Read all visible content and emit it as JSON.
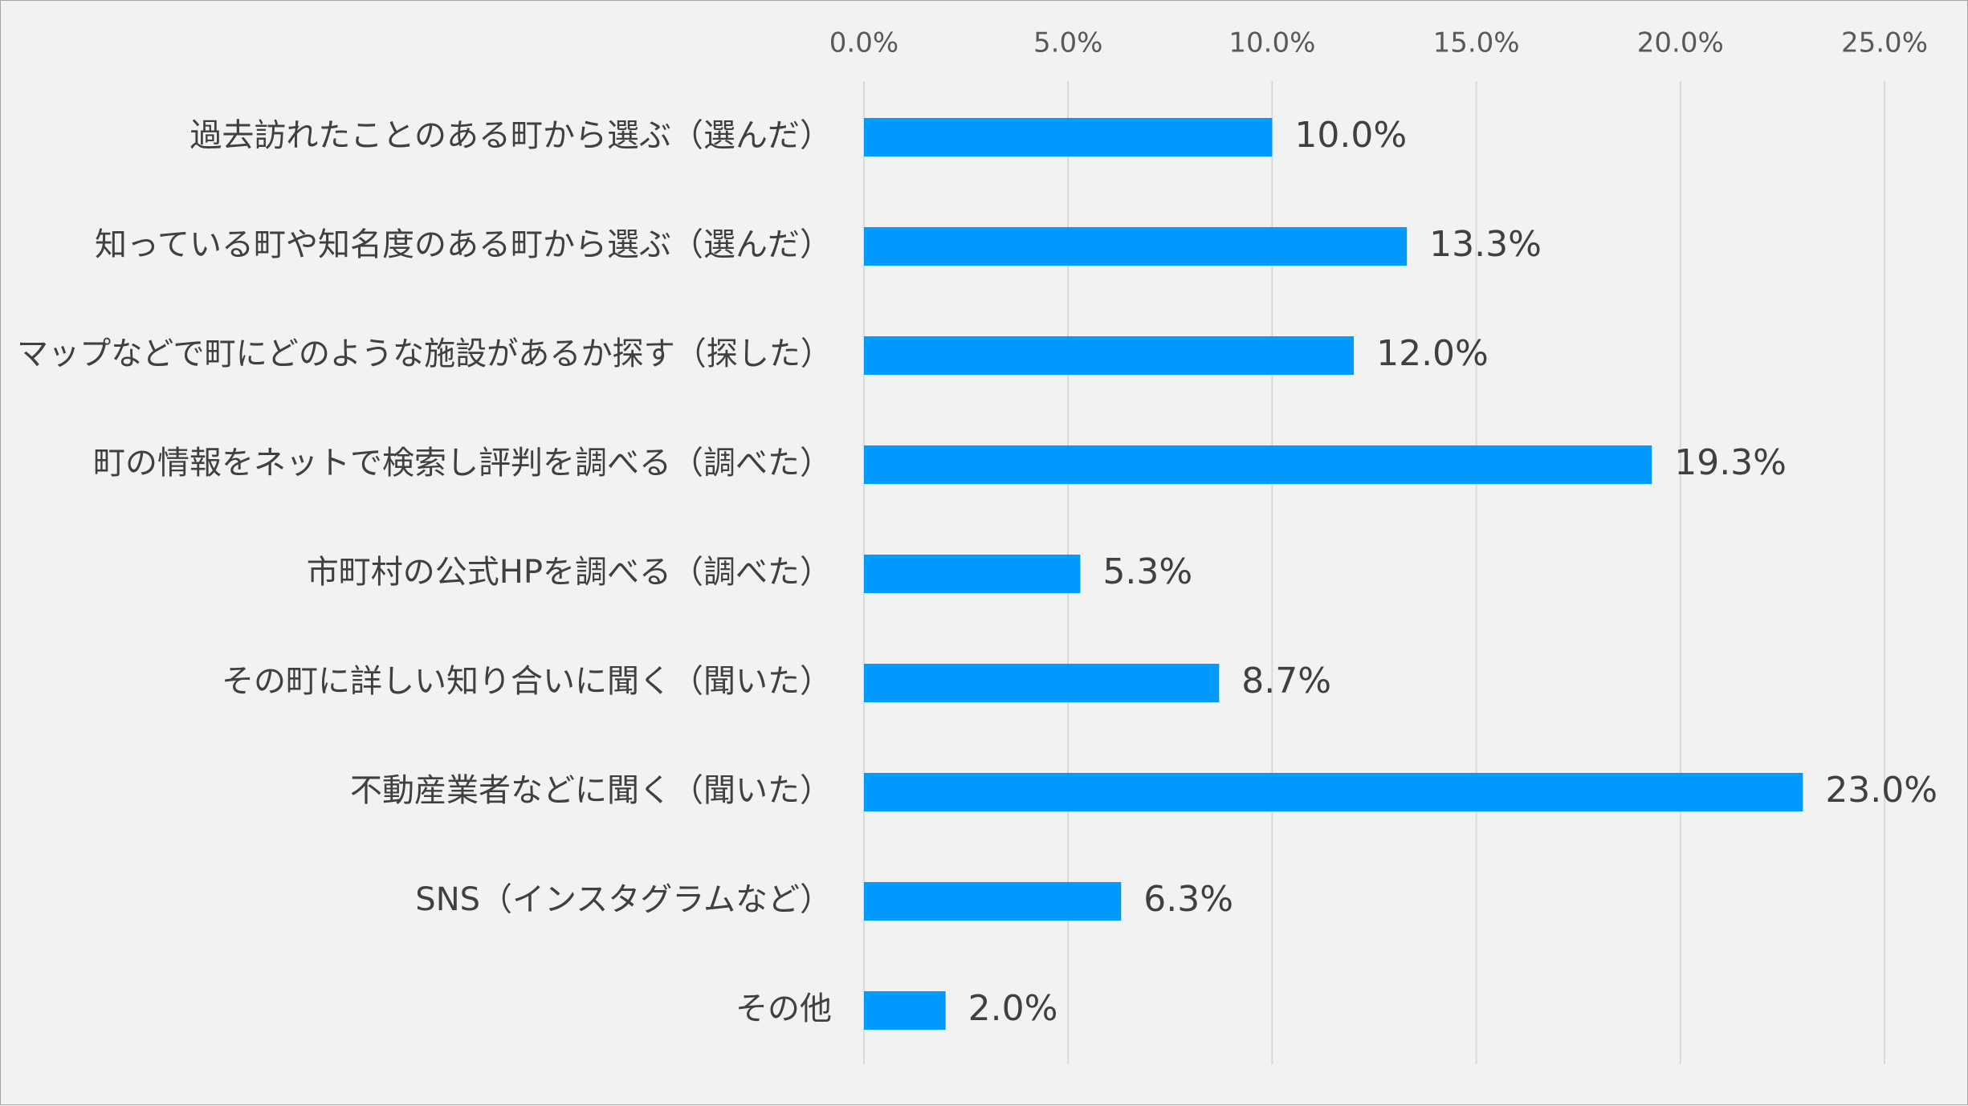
{
  "chart_data": {
    "type": "bar",
    "orientation": "horizontal",
    "title": "",
    "xlabel": "",
    "ylabel": "",
    "categories": [
      "過去訪れたことのある町から選ぶ（選んだ）",
      "知っている町や知名度のある町から選ぶ（選んだ）",
      "マップなどで町にどのような施設があるか探す（探した）",
      "町の情報をネットで検索し評判を調べる（調べた）",
      "市町村の公式HPを調べる（調べた）",
      "その町に詳しい知り合いに聞く（聞いた）",
      "不動産業者などに聞く（聞いた）",
      "SNS（インスタグラムなど）",
      "その他"
    ],
    "values": [
      10.0,
      13.3,
      12.0,
      19.3,
      5.3,
      8.7,
      23.0,
      6.3,
      2.0
    ],
    "value_labels": [
      "10.0%",
      "13.3%",
      "12.0%",
      "19.3%",
      "5.3%",
      "8.7%",
      "23.0%",
      "6.3%",
      "2.0%"
    ],
    "xlim": [
      0,
      25
    ],
    "ticks": [
      0,
      5,
      10,
      15,
      20,
      25
    ],
    "tick_labels": [
      "0.0%",
      "5.0%",
      "10.0%",
      "15.0%",
      "20.0%",
      "25.0%"
    ],
    "axis_position": "top",
    "grid": true,
    "legend": "none",
    "colors": {
      "bar": "#0099ff",
      "grid": "#d9d9d9",
      "background": "#f2f2f2",
      "border": "#a6a6a6"
    }
  }
}
